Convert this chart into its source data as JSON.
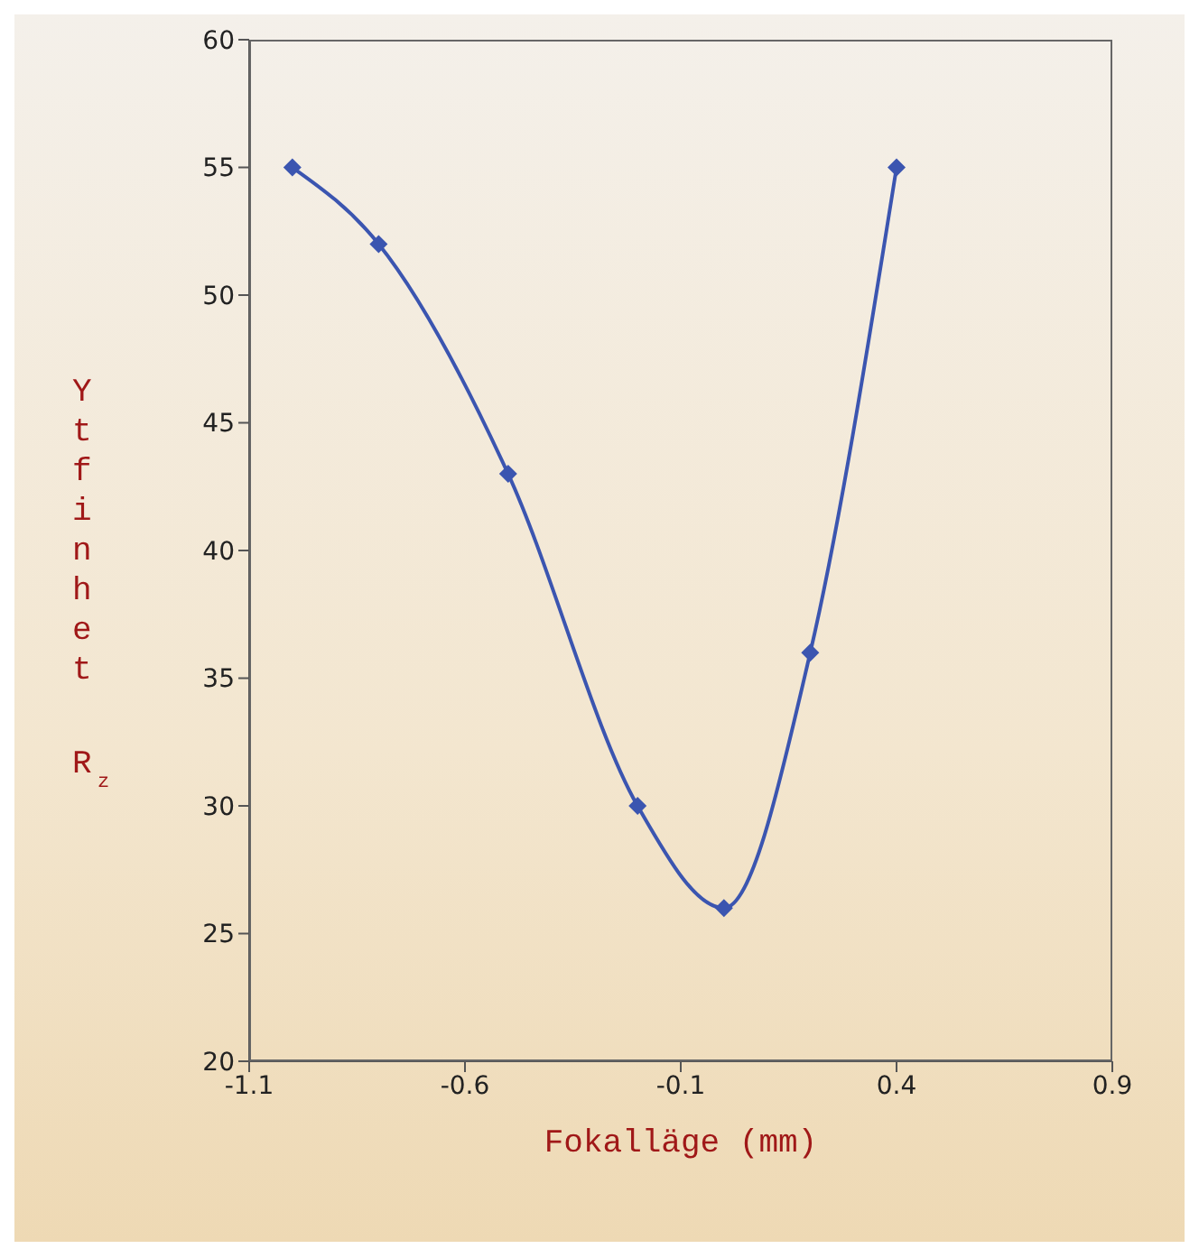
{
  "chart_data": {
    "type": "line",
    "xlabel": "Fokalläge (mm)",
    "ylabel": "Ytfinhet R$_{z}$",
    "x": [
      -1.0,
      -0.8,
      -0.5,
      -0.2,
      0.0,
      0.2,
      0.4
    ],
    "series": [
      {
        "color": "#3b55b0",
        "values": [
          55,
          52,
          43,
          30,
          26,
          36,
          55
        ]
      }
    ],
    "xlim": [
      -1.1,
      0.9
    ],
    "xticks": [
      -1.1,
      -0.6,
      -0.1,
      0.4,
      0.9
    ],
    "ylim": [
      20,
      60
    ],
    "yticks": [
      20,
      25,
      30,
      35,
      40,
      45,
      50,
      55,
      60
    ],
    "grid": false,
    "marker": "diamond",
    "line_style": "solid"
  }
}
